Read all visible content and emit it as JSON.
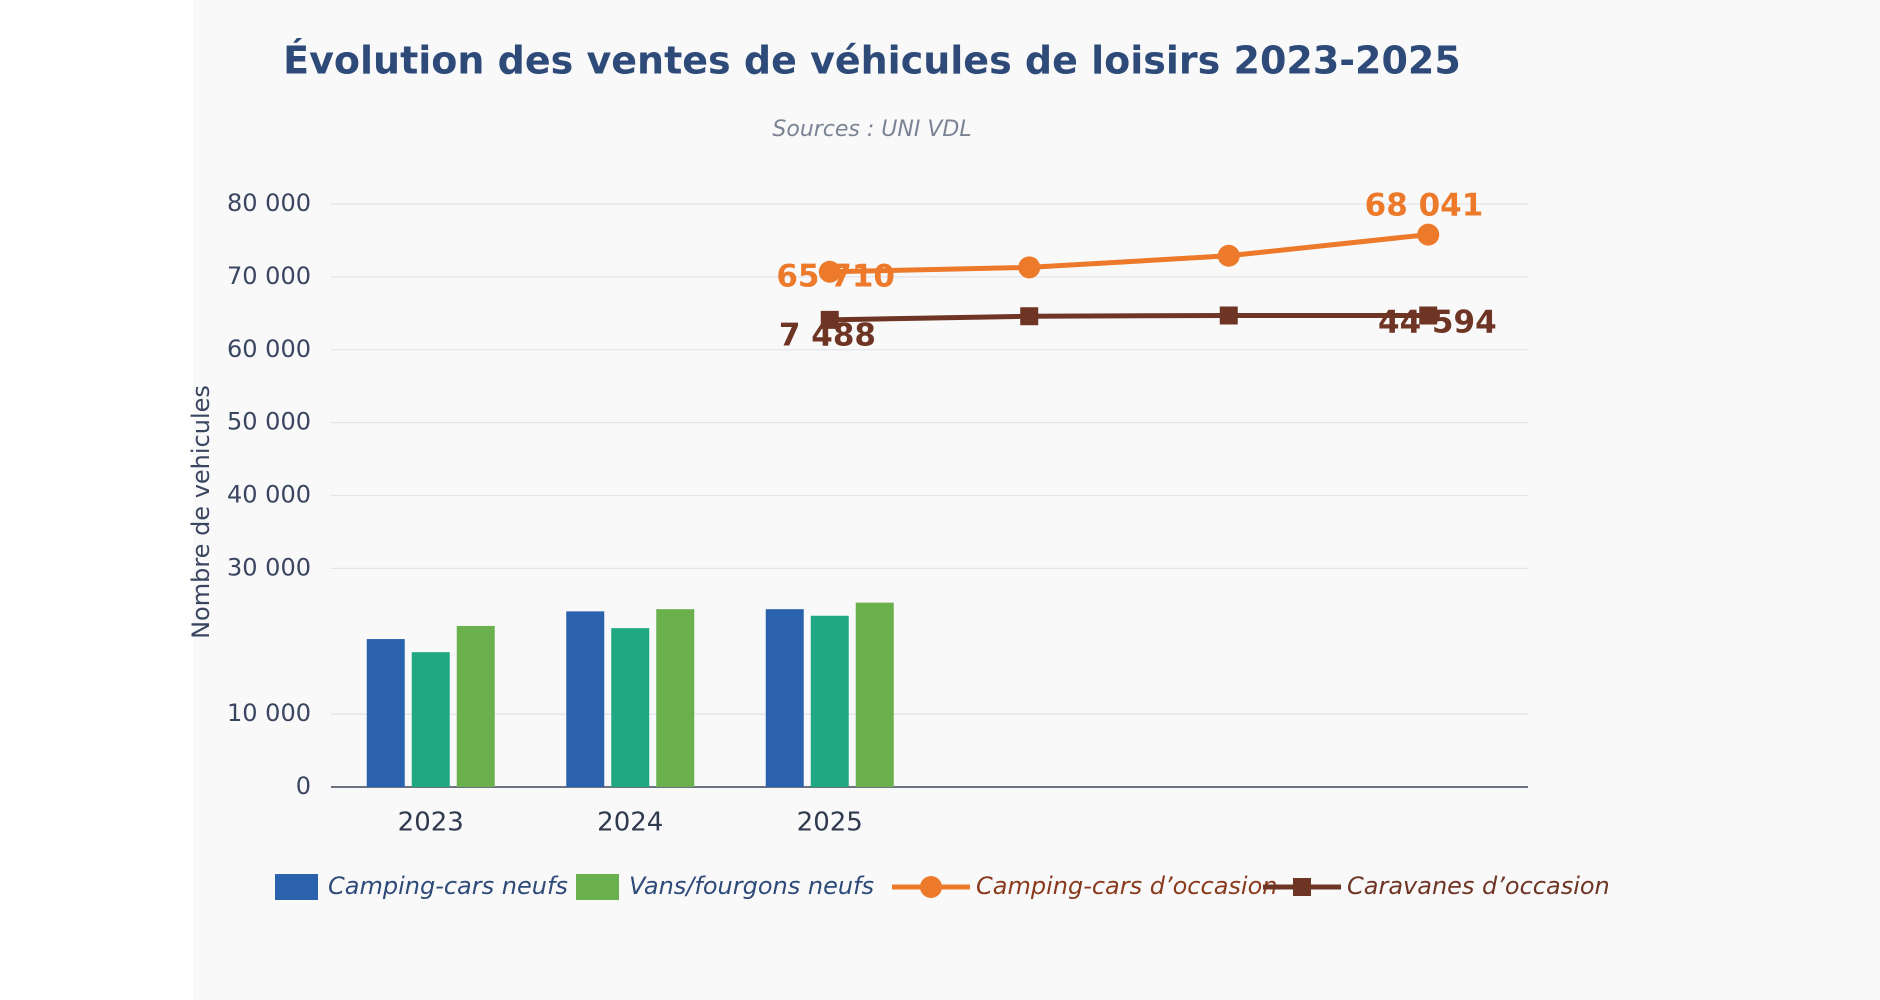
{
  "chart_data": {
    "type": "bar",
    "title": "Évolution des ventes de véhicules de loisirs 2023-2025",
    "subtitle": "Sources : UNI VDL",
    "y_label": "Nombre de vehicules",
    "categories": [
      "2023",
      "2024",
      "2025",
      null,
      null,
      null
    ],
    "series": [
      {
        "name": "Camping-cars neufs",
        "type": "bar",
        "color": "#2a62ad",
        "values": [
          20300,
          24100,
          24400,
          null,
          null,
          null
        ]
      },
      {
        "type": "bar",
        "color": "#20a883",
        "values": [
          18500,
          21800,
          23500,
          null,
          null,
          null
        ]
      },
      {
        "name": "Vans/fourgons neufs",
        "type": "bar",
        "color": "#6ab04c",
        "values": [
          22100,
          24400,
          25300,
          null,
          null,
          null
        ]
      },
      {
        "name": "Camping-cars d’occasion",
        "type": "line",
        "marker": "circle",
        "color": "#ec7a2a",
        "values": [
          null,
          null,
          70700,
          71300,
          72900,
          75800
        ]
      },
      {
        "name": "Caravanes d’occasion",
        "type": "line",
        "marker": "square",
        "color": "#6e3524",
        "values": [
          null,
          null,
          64100,
          64600,
          64700,
          64700
        ]
      }
    ],
    "annotations": [
      "65 710",
      "68 041",
      "7 488",
      "44 594"
    ],
    "ylim": [
      0,
      80000
    ],
    "yticks": [
      0,
      {
        "value": 10000,
        "label": "10 000"
      },
      {
        "value": 30000,
        "label": "30 000"
      },
      {
        "value": 40000,
        "label": "40 000"
      },
      {
        "value": 50000,
        "label": "50 000"
      },
      {
        "value": 60000,
        "label": "60 000"
      },
      {
        "value": 70000,
        "label": "70 000"
      },
      {
        "value": 80000,
        "label": "80 000"
      }
    ],
    "grid": true
  }
}
